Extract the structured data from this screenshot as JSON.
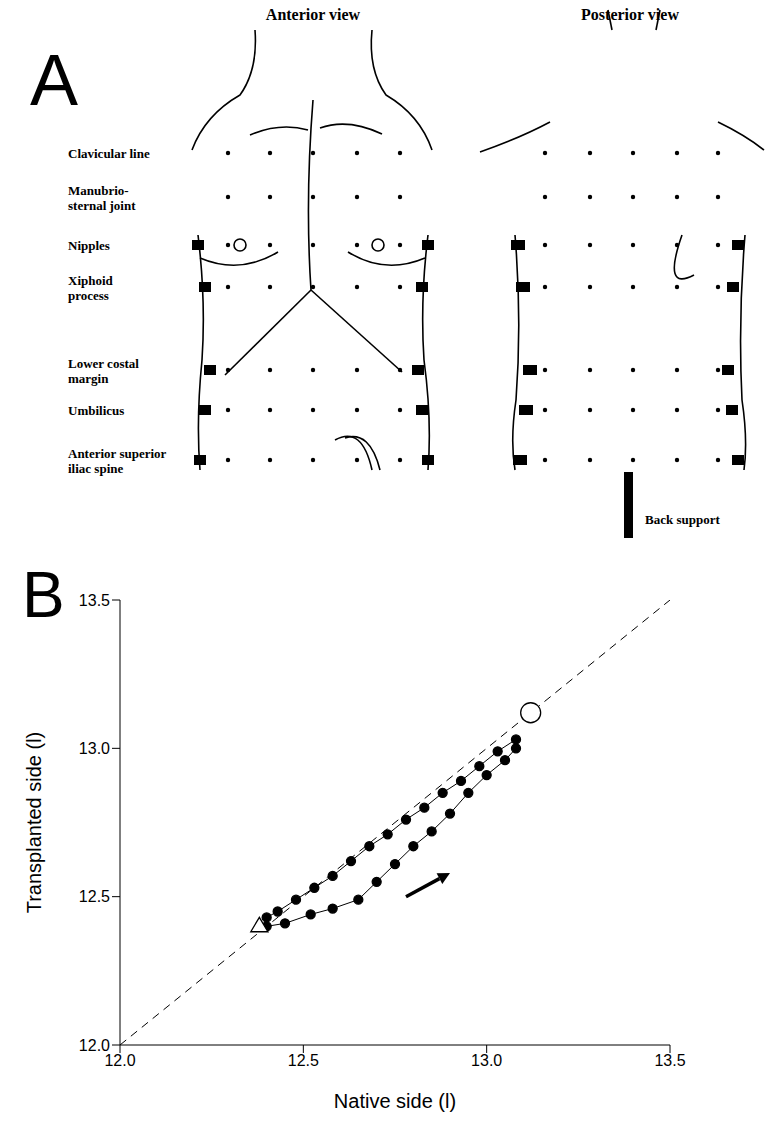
{
  "panel_labels": [
    "A",
    "B"
  ],
  "diagram": {
    "views": [
      "Anterior view",
      "Posterior view"
    ],
    "landmarks": [
      {
        "lines": [
          "Clavicular line"
        ]
      },
      {
        "lines": [
          "Manubrio-",
          "sternal joint"
        ]
      },
      {
        "lines": [
          "Nipples"
        ]
      },
      {
        "lines": [
          "Xiphoid",
          "process"
        ]
      },
      {
        "lines": [
          "Lower costal",
          "margin"
        ]
      },
      {
        "lines": [
          "Umbilicus"
        ]
      },
      {
        "lines": [
          "Anterior superior",
          "iliac spine"
        ]
      }
    ],
    "back_support": "Back support"
  },
  "chart_data": {
    "type": "scatter",
    "x_label": "Native side (l)",
    "y_label": "Transplanted side (l)",
    "xlim": [
      12.0,
      13.5
    ],
    "xticks": [
      {
        "value": 12,
        "label": "12.0"
      },
      {
        "value": 12.5,
        "label": "12.5"
      },
      {
        "value": 13,
        "label": "13.0"
      },
      {
        "value": 13.5,
        "label": "13.5"
      }
    ],
    "ylim": [
      12.0,
      13.5
    ],
    "yticks": [
      {
        "value": 12,
        "label": "12.0"
      },
      {
        "value": 12.5,
        "label": "12.5"
      },
      {
        "value": 13,
        "label": "13.0"
      },
      {
        "value": 13.5,
        "label": "13.5"
      }
    ],
    "grid": false,
    "color": "#000000",
    "marker": "circle",
    "line_style": "solid",
    "x": [
      12.4,
      12.45,
      12.52,
      12.58,
      12.65,
      12.7,
      12.75,
      12.8,
      12.85,
      12.9,
      12.95,
      13.0,
      13.05,
      13.08,
      13.08,
      13.03,
      12.98,
      12.93,
      12.88,
      12.83,
      12.78,
      12.73,
      12.68,
      12.63,
      12.58,
      12.53,
      12.48,
      12.43,
      12.4
    ],
    "y": [
      12.4,
      12.41,
      12.44,
      12.46,
      12.49,
      12.55,
      12.61,
      12.67,
      12.72,
      12.78,
      12.85,
      12.91,
      12.96,
      13.0,
      13.03,
      12.99,
      12.94,
      12.89,
      12.85,
      12.8,
      12.76,
      12.71,
      12.67,
      12.62,
      12.57,
      12.53,
      12.49,
      12.45,
      12.43
    ],
    "start": {
      "x": 12.38,
      "y": 12.4,
      "marker": "triangle"
    },
    "end": {
      "x": 13.12,
      "y": 13.12,
      "marker": "circle"
    },
    "reference_line": {
      "x": [
        12.0,
        13.5
      ],
      "y": [
        12.0,
        13.5
      ],
      "line_style": "dashed"
    },
    "arrow": {
      "x": [
        12.78,
        12.9
      ],
      "y": [
        12.5,
        12.58
      ]
    }
  }
}
